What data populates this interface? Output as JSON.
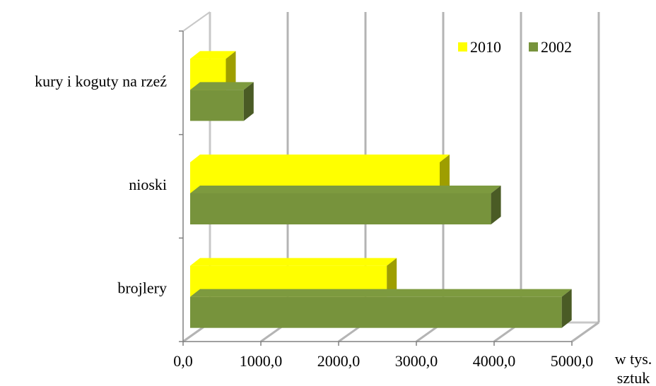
{
  "chart_data": {
    "type": "bar",
    "orientation": "horizontal",
    "three_d": true,
    "categories": [
      "kury i koguty na rzeź",
      "nioski",
      "brojlery"
    ],
    "series": [
      {
        "name": "2010",
        "color": "#ffff00",
        "values": [
          550,
          3300,
          2620
        ]
      },
      {
        "name": "2002",
        "color": "#77933c",
        "values": [
          780,
          3960,
          4870
        ]
      }
    ],
    "xlim": [
      0,
      5000
    ],
    "ticks": [
      "0,0",
      "1000,0",
      "2000,0",
      "3000,0",
      "4000,0",
      "5000,0"
    ],
    "unit_label": [
      "w tys.",
      "sztuk"
    ],
    "grid": true,
    "legend_position": "top-right"
  }
}
